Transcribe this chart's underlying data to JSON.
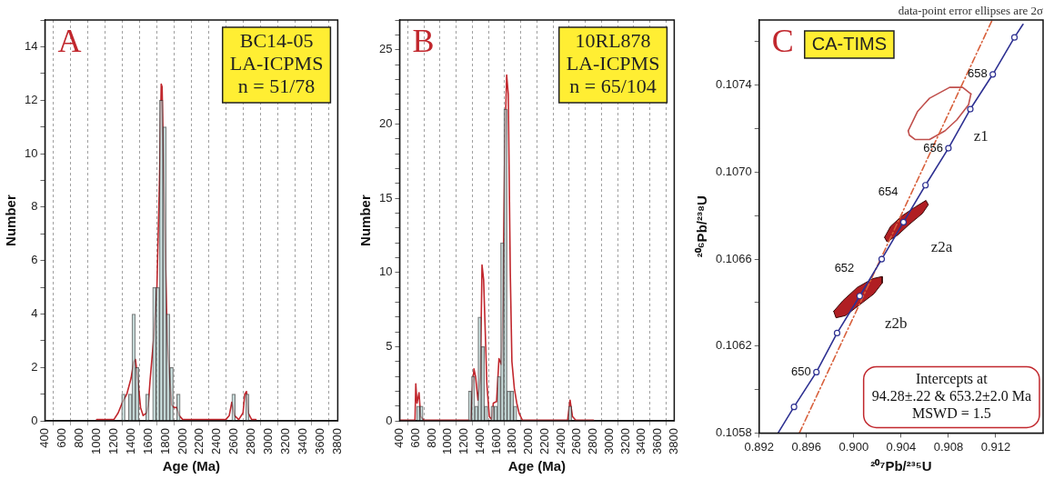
{
  "chart_data": [
    {
      "type": "histogram",
      "xlabel": "Age (Ma)",
      "ylabel": "Number",
      "xlim": [
        400,
        3800
      ],
      "ylim": [
        0,
        15
      ],
      "xticks": [
        400,
        600,
        800,
        1000,
        1200,
        1400,
        1600,
        1800,
        2000,
        2200,
        2400,
        2600,
        2800,
        3000,
        3200,
        3400,
        3600,
        3800
      ],
      "yticks": [
        0,
        {
          "value": 1,
          "label": null
        },
        2,
        {
          "value": 3,
          "label": null
        },
        4,
        {
          "value": 5,
          "label": null
        },
        6,
        {
          "value": 7,
          "label": null
        },
        8,
        {
          "value": 9,
          "label": null
        },
        10,
        {
          "value": 11,
          "label": null
        },
        12,
        {
          "value": 13,
          "label": null
        },
        14,
        {
          "value": 15,
          "label": null
        }
      ],
      "grid": "x",
      "legend": false,
      "color": "#c2e3e1",
      "bins": [
        1290,
        1330,
        1370,
        1410,
        1450,
        1490,
        1530,
        1570,
        1610,
        1650,
        1690,
        1730,
        1770,
        1810,
        1850,
        1890,
        1930,
        1970,
        2010,
        2050,
        2090,
        2130,
        2170,
        2210,
        2250,
        2290,
        2330,
        2370,
        2410,
        2450,
        2490,
        2530,
        2570,
        2610,
        2650,
        2690,
        2730,
        2770
      ],
      "values": [
        1,
        0,
        1,
        4,
        2,
        0,
        0,
        1,
        0,
        5,
        5,
        12,
        11,
        4,
        2,
        0,
        1,
        0,
        0,
        0,
        0,
        0,
        0,
        0,
        0,
        0,
        0,
        0,
        0,
        0,
        0,
        0,
        1,
        0,
        0,
        0,
        1
      ],
      "series": [
        {
          "type": "line",
          "color": "#c1272d",
          "x": [
            1000,
            1200,
            1250,
            1300,
            1350,
            1400,
            1430,
            1450,
            1480,
            1510,
            1540,
            1580,
            1600,
            1620,
            1660,
            1700,
            1730,
            1750,
            1760,
            1775,
            1800,
            1820,
            1870,
            1900,
            1930,
            1960,
            2000,
            2500,
            2540,
            2570,
            2600,
            2650,
            2700,
            2720,
            2740,
            2760,
            2800,
            2850
          ],
          "values": [
            0.05,
            0.05,
            0.3,
            0.7,
            1.0,
            1.6,
            2.2,
            2.3,
            1.5,
            0.5,
            0.2,
            0.3,
            0.6,
            1.5,
            3,
            5,
            9,
            12.6,
            12.5,
            10,
            6,
            3,
            0.6,
            0.5,
            0.5,
            0.2,
            0.05,
            0.05,
            0.2,
            0.7,
            0.2,
            0.05,
            0.3,
            1.0,
            1.1,
            0.3,
            0.05,
            0.05
          ]
        }
      ],
      "annotations": [
        "A",
        "BC14-05\nLA-ICPMS\nn = 51/78"
      ]
    },
    {
      "type": "histogram",
      "xlabel": "Age (Ma)",
      "ylabel": "Number",
      "xlim": [
        400,
        3800
      ],
      "ylim": [
        0,
        27
      ],
      "xticks": [
        400,
        600,
        800,
        1000,
        1200,
        1400,
        1600,
        1800,
        2000,
        2200,
        2400,
        2600,
        2800,
        3000,
        3200,
        3400,
        3600,
        3800
      ],
      "yticks": [
        0,
        {
          "value": 1,
          "label": null
        },
        {
          "value": 2,
          "label": null
        },
        {
          "value": 3,
          "label": null
        },
        {
          "value": 4,
          "label": null
        },
        5,
        {
          "value": 6,
          "label": null
        },
        {
          "value": 7,
          "label": null
        },
        {
          "value": 8,
          "label": null
        },
        {
          "value": 9,
          "label": null
        },
        10,
        {
          "value": 11,
          "label": null
        },
        {
          "value": 12,
          "label": null
        },
        {
          "value": 13,
          "label": null
        },
        {
          "value": 14,
          "label": null
        },
        15,
        {
          "value": 16,
          "label": null
        },
        {
          "value": 17,
          "label": null
        },
        {
          "value": 18,
          "label": null
        },
        {
          "value": 19,
          "label": null
        },
        20,
        {
          "value": 21,
          "label": null
        },
        {
          "value": 22,
          "label": null
        },
        {
          "value": 23,
          "label": null
        },
        {
          "value": 24,
          "label": null
        },
        25,
        {
          "value": 26,
          "label": null
        },
        {
          "value": 27,
          "label": null
        }
      ],
      "grid": "x",
      "legend": false,
      "color": "#c2e3e1",
      "bins": [
        610,
        650,
        690,
        730,
        770,
        810,
        850,
        890,
        930,
        970,
        1010,
        1050,
        1090,
        1130,
        1170,
        1210,
        1250,
        1290,
        1330,
        1370,
        1410,
        1450,
        1490,
        1530,
        1570,
        1610,
        1650,
        1690,
        1730,
        1770,
        1810,
        1850,
        1890,
        1930,
        1970,
        2010,
        2050,
        2090,
        2130,
        2170,
        2210,
        2250,
        2290,
        2330,
        2370,
        2410,
        2450,
        2490,
        2530
      ],
      "values": [
        1,
        1,
        0,
        0,
        0,
        0,
        0,
        0,
        0,
        0,
        0,
        0,
        0,
        0,
        0,
        0,
        2,
        3,
        1,
        7,
        5,
        1,
        0,
        1,
        1,
        3,
        12,
        21,
        2,
        2,
        1,
        0,
        0,
        0,
        0,
        0,
        0,
        0,
        0,
        0,
        0,
        0,
        0,
        0,
        0,
        0,
        0,
        1
      ],
      "series": [
        {
          "type": "line",
          "color": "#c1272d",
          "x": [
            400,
            590,
            600,
            615,
            640,
            660,
            700,
            1280,
            1300,
            1320,
            1340,
            1370,
            1400,
            1420,
            1440,
            1460,
            1480,
            1510,
            1540,
            1560,
            1600,
            1630,
            1660,
            1680,
            1700,
            1725,
            1745,
            1770,
            1790,
            1820,
            1850,
            1880,
            1920,
            2480,
            2510,
            2540,
            2580,
            2800
          ],
          "values": [
            0.05,
            0.05,
            2.5,
            1.2,
            1.9,
            0.3,
            0.05,
            0.05,
            2.0,
            3.5,
            3.0,
            1.4,
            3,
            10.5,
            9.5,
            6,
            2.5,
            0.3,
            0.1,
            1.2,
            1.3,
            4.2,
            3.8,
            8,
            18,
            23.3,
            22,
            10,
            4,
            2.2,
            1.2,
            0.5,
            0.05,
            0.05,
            1.4,
            0.3,
            0.05,
            0.05
          ]
        }
      ],
      "annotations": [
        "B",
        "10RL878\nLA-ICPMS\nn = 65/104"
      ]
    },
    {
      "type": "scatter",
      "xlabel": "²⁰⁷Pb/²³⁵U",
      "ylabel": "²⁰⁶Pb/²³⁸U",
      "xlim": [
        0.892,
        0.916
      ],
      "ylim": [
        0.1058,
        0.1077
      ],
      "xticks": [
        0.892,
        0.896,
        {
          "value": 0.9,
          "label": "0.900"
        },
        0.904,
        0.908,
        0.912
      ],
      "yticks": [
        0.1058,
        {
          "value": 0.106,
          "label": null
        },
        0.1062,
        {
          "value": 0.1064,
          "label": null
        },
        0.1066,
        {
          "value": 0.1068,
          "label": null
        },
        {
          "value": 0.107,
          "label": "0.1070"
        },
        {
          "value": 0.1072,
          "label": null
        },
        0.1074,
        {
          "value": 0.1076,
          "label": null
        }
      ],
      "grid": false,
      "legend": false,
      "series": [
        {
          "type": "line",
          "color": "#2e3192",
          "marker": "none",
          "x": [
            0.8936,
            0.89495,
            0.89684,
            0.89859,
            0.9005,
            0.90236,
            0.9042,
            0.90606,
            0.908,
            0.90985,
            0.91175,
            0.91358,
            0.9143
          ],
          "values": [
            0.1058,
            0.10592,
            0.10608,
            0.10626,
            0.10643,
            0.1066,
            0.10677,
            0.10694,
            0.10711,
            0.10729,
            0.10745,
            0.10762,
            0.10768
          ]
        },
        {
          "color": "#2e3192",
          "marker": "circle",
          "x": [
            0.89495,
            0.89684,
            0.89859,
            0.9005,
            0.90236,
            0.9042,
            0.90606,
            0.908,
            0.90985,
            0.91175,
            0.91358
          ],
          "values": [
            0.10592,
            0.10608,
            0.10626,
            0.10643,
            0.1066,
            0.10677,
            0.10694,
            0.10711,
            0.10729,
            0.10745,
            0.10762
          ]
        },
        {
          "type": "line",
          "color": "#d8603c",
          "line_style": "dashed",
          "marker": "none",
          "x": [
            0.8954,
            0.9117
          ],
          "values": [
            0.1058,
            0.1077
          ]
        },
        {
          "type": "line",
          "name": "z1",
          "color": "#c0504d",
          "marker": "none",
          "x": [
            0.9046,
            0.9054,
            0.9064,
            0.9081,
            0.9092,
            0.9099
          ],
          "values": [
            0.10719,
            0.10728,
            0.10734,
            0.10739,
            0.10739,
            0.10736
          ]
        },
        {
          "type": "line",
          "color": "#c0504d",
          "marker": "none",
          "x": [
            0.9046,
            0.9047,
            0.9052,
            0.9064,
            0.9077,
            0.9087,
            0.9097,
            0.9099
          ],
          "values": [
            0.10719,
            0.10717,
            0.10715,
            0.10715,
            0.10719,
            0.10724,
            0.10731,
            0.10736
          ]
        },
        {
          "type": "area",
          "name": "z2a",
          "color": "#b01e23",
          "marker": "none",
          "x": [
            0.9026,
            0.9031,
            0.9041,
            0.9052,
            0.9061,
            0.9063,
            0.9058,
            0.9047,
            0.9037,
            0.9028,
            0.9026
          ],
          "values": [
            0.1067,
            0.10675,
            0.1068,
            0.10684,
            0.10687,
            0.10685,
            0.10681,
            0.10676,
            0.10671,
            0.10668,
            0.1067
          ]
        },
        {
          "type": "area",
          "name": "z2b",
          "color": "#b01e23",
          "marker": "none",
          "x": [
            0.8983,
            0.8991,
            0.9003,
            0.9016,
            0.9024,
            0.9024,
            0.9017,
            0.9005,
            0.8993,
            0.8985,
            0.8983
          ],
          "values": [
            0.10636,
            0.10641,
            0.10647,
            0.10651,
            0.10652,
            0.10649,
            0.10644,
            0.10639,
            0.10634,
            0.10633,
            0.10636
          ]
        }
      ],
      "annotations": [
        "C",
        "CA-TIMS",
        "data-point error ellipses are 2σ",
        "Intercepts at\n94.28±.22 & 653.2±2.0 Ma\nMSWD = 1.5",
        {
          "text": "650",
          "x": 0.89684,
          "y": 0.10608
        },
        {
          "text": "652",
          "x": 0.9005,
          "y": 0.10643
        },
        {
          "text": "654",
          "x": 0.9042,
          "y": 0.10677
        },
        {
          "text": "656",
          "x": 0.908,
          "y": 0.10711
        },
        {
          "text": "658",
          "x": 0.91175,
          "y": 0.10745
        }
      ]
    }
  ]
}
